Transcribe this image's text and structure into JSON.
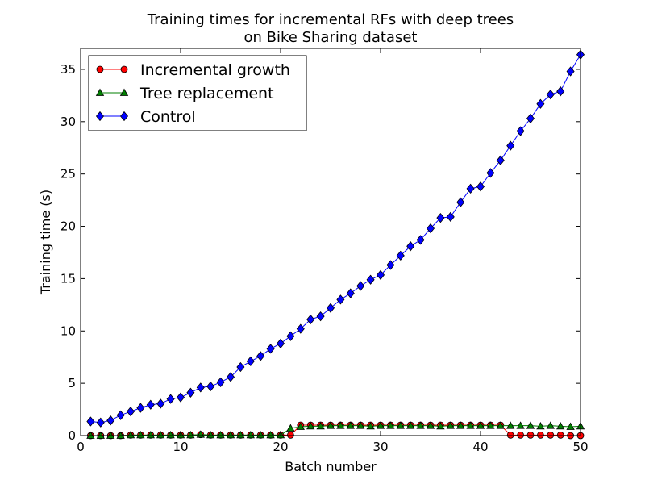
{
  "chart_data": {
    "type": "line",
    "title": "Training times for incremental RFs with deep trees",
    "subtitle": "on Bike Sharing dataset",
    "xlabel": "Batch number",
    "ylabel": "Training time (s)",
    "xlim": [
      0,
      50
    ],
    "ylim": [
      0,
      37
    ],
    "xticks": [
      "0",
      "10",
      "20",
      "30",
      "40",
      "50"
    ],
    "yticks": [
      "0",
      "5",
      "10",
      "15",
      "20",
      "25",
      "30",
      "35"
    ],
    "grid": false,
    "legend_position": "top-left",
    "x": [
      1,
      2,
      3,
      4,
      5,
      6,
      7,
      8,
      9,
      10,
      11,
      12,
      13,
      14,
      15,
      16,
      17,
      18,
      19,
      20,
      21,
      22,
      23,
      24,
      25,
      26,
      27,
      28,
      29,
      30,
      31,
      32,
      33,
      34,
      35,
      36,
      37,
      38,
      39,
      40,
      41,
      42,
      43,
      44,
      45,
      46,
      47,
      48,
      49,
      50
    ],
    "series": [
      {
        "name": "Incremental growth",
        "color": "#ff0000",
        "marker": "circle",
        "values": [
          0,
          0,
          0,
          0,
          0.05,
          0.05,
          0.05,
          0.05,
          0.05,
          0.05,
          0.05,
          0.1,
          0.05,
          0.05,
          0.05,
          0.05,
          0.05,
          0.05,
          0.05,
          0.05,
          0.05,
          1.0,
          1.0,
          1.0,
          1.0,
          1.0,
          1.0,
          1.0,
          1.0,
          1.0,
          1.0,
          1.0,
          1.0,
          1.0,
          1.0,
          1.0,
          1.0,
          1.0,
          1.0,
          1.0,
          1.0,
          1.0,
          0.05,
          0.05,
          0.05,
          0.05,
          0.05,
          0.05,
          0,
          0
        ]
      },
      {
        "name": "Tree replacement",
        "color": "#007f00",
        "marker": "triangle",
        "values": [
          0,
          0,
          0,
          0,
          0.05,
          0.05,
          0.05,
          0.05,
          0.05,
          0.05,
          0.05,
          0.1,
          0.05,
          0.05,
          0.05,
          0.05,
          0.05,
          0.05,
          0.05,
          0.05,
          0.7,
          0.85,
          0.9,
          0.9,
          0.95,
          0.95,
          0.95,
          0.95,
          0.9,
          0.95,
          0.95,
          0.95,
          0.95,
          0.95,
          0.95,
          0.9,
          0.95,
          0.95,
          0.95,
          0.95,
          0.95,
          0.95,
          0.95,
          0.95,
          0.95,
          0.9,
          0.95,
          0.9,
          0.85,
          0.9
        ]
      },
      {
        "name": "Control",
        "color": "#0000ff",
        "marker": "diamond",
        "values": [
          1.35,
          1.25,
          1.45,
          1.95,
          2.3,
          2.65,
          2.95,
          3.05,
          3.5,
          3.65,
          4.1,
          4.6,
          4.7,
          5.1,
          5.6,
          6.55,
          7.1,
          7.6,
          8.3,
          8.8,
          9.5,
          10.2,
          11.1,
          11.4,
          12.2,
          13.0,
          13.6,
          14.3,
          14.9,
          15.35,
          16.3,
          17.2,
          18.1,
          18.7,
          19.8,
          20.8,
          20.9,
          22.3,
          23.6,
          23.8,
          25.1,
          26.3,
          27.7,
          29.1,
          30.3,
          31.7,
          32.6,
          32.9,
          34.8,
          36.4
        ]
      }
    ]
  }
}
